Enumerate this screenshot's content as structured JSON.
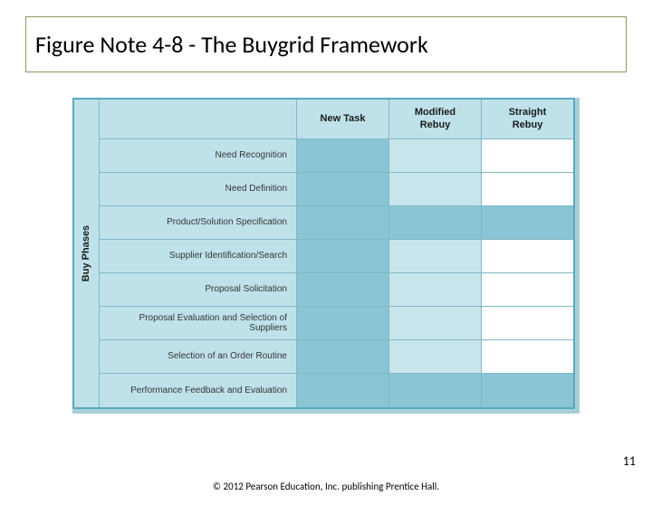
{
  "title": "Figure Note 4-8 - The Buygrid Framework",
  "yAxisLabel": "Buy Phases",
  "columns": [
    "New Task",
    "Modified\nRebuy",
    "Straight\nRebuy"
  ],
  "rows": [
    {
      "label": "Need Recognition",
      "cells": [
        "dark",
        "light",
        "white"
      ]
    },
    {
      "label": "Need Definition",
      "cells": [
        "dark",
        "light",
        "white"
      ]
    },
    {
      "label": "Product/Solution Specification",
      "cells": [
        "dark",
        "dark",
        "dark"
      ]
    },
    {
      "label": "Supplier Identification/Search",
      "cells": [
        "dark",
        "light",
        "white"
      ]
    },
    {
      "label": "Proposal Solicitation",
      "cells": [
        "dark",
        "light",
        "white"
      ]
    },
    {
      "label": "Proposal Evaluation and Selection of Suppliers",
      "cells": [
        "dark",
        "light",
        "white"
      ]
    },
    {
      "label": "Selection of an Order Routine",
      "cells": [
        "dark",
        "light",
        "white"
      ]
    },
    {
      "label": "Performance Feedback and Evaluation",
      "cells": [
        "dark",
        "dark",
        "dark"
      ]
    }
  ],
  "shadeColors": {
    "dark": "#89c5d4",
    "light": "#c9e5ec",
    "white": "#ffffff"
  },
  "frameColors": {
    "outerShadow": "#a9cfd9",
    "border": "#58a9bf",
    "grid": "#7fb8c6",
    "headerBg": "#bfe2ea"
  },
  "pageNumber": "11",
  "copyright": "© 2012 Pearson Education, Inc. publishing Prentice Hall."
}
